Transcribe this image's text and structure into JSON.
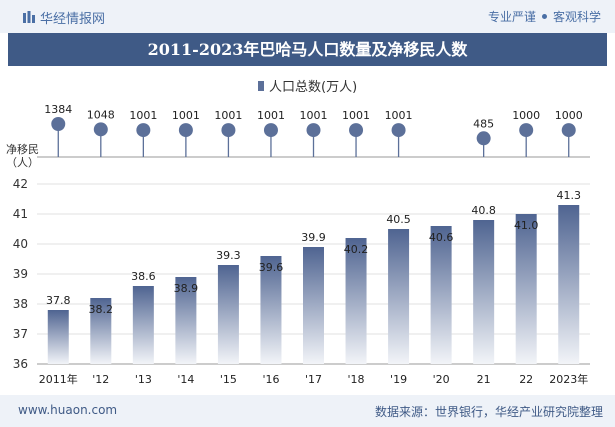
{
  "header": {
    "brand": "华经情报网",
    "tag1": "专业严谨",
    "tag2": "客观科学"
  },
  "title": "2011-2023年巴哈马人口数量及净移民人数",
  "legend_label": "人口总数(万人)",
  "net_migration_label": "净移民\n（人）",
  "footer": {
    "site": "www.huaon.com",
    "source": "数据来源：世界银行，华经产业研究院整理"
  },
  "colors": {
    "bar_top": "#4f6491",
    "bar_bottom": "#f2f4f8",
    "lollipop": "#5c7099",
    "title_bg": "#3f5a86"
  },
  "chart_data": {
    "type": "bar",
    "categories": [
      "2011年",
      "'12",
      "'13",
      "'14",
      "'15",
      "'16",
      "'17",
      "'18",
      "'19",
      "'20",
      "21",
      "22",
      "2023年"
    ],
    "series": [
      {
        "name": "人口总数(万人)",
        "values": [
          37.8,
          38.2,
          38.6,
          38.9,
          39.3,
          39.6,
          39.9,
          40.2,
          40.5,
          40.6,
          40.8,
          41.0,
          41.3
        ]
      }
    ],
    "value_labels": [
      "37.8",
      "38.2",
      "38.6",
      "38.9",
      "39.3",
      "39.6",
      "39.9",
      "40.2",
      "40.5",
      "40.6",
      "40.8",
      "41.0",
      "41.3"
    ],
    "ylim": [
      36,
      42
    ],
    "yticks": [
      "36",
      "37",
      "38",
      "39",
      "40",
      "41",
      "42"
    ],
    "net_migration": {
      "values": [
        1384,
        1048,
        1001,
        1001,
        1001,
        1001,
        1001,
        1001,
        1001,
        null,
        485,
        1000,
        1000
      ],
      "labels": [
        "1384",
        "1048",
        "1001",
        "1001",
        "1001",
        "1001",
        "1001",
        "1001",
        "1001",
        "",
        "485",
        "1000",
        "1000"
      ]
    }
  }
}
